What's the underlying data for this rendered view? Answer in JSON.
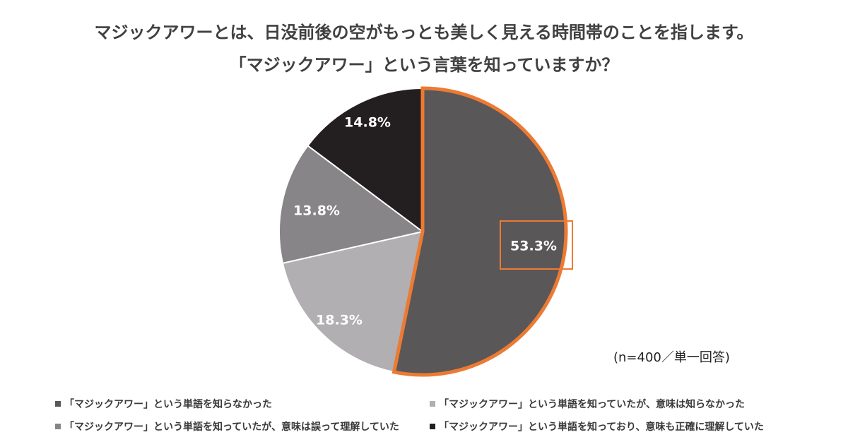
{
  "chart_data": {
    "type": "pie",
    "title": "マジックアワーとは、日没前後の空がもっとも美しく見える時間帯のことを指します。",
    "subtitle": "「マジックアワー」という言葉を知っていますか？",
    "slices": [
      {
        "name": "「マジックアワー」という単語を知らなかった",
        "value": 53.3,
        "label": "53.3%",
        "color": "#595758"
      },
      {
        "name": "「マジックアワー」という単語を知っていたが、意味は知らなかった",
        "value": 18.3,
        "label": "18.3%",
        "color": "#b1afb2"
      },
      {
        "name": "「マジックアワー」という単語を知っていたが、意味は誤って理解していた",
        "value": 13.8,
        "label": "13.8%",
        "color": "#878587"
      },
      {
        "name": "「マジックアワー」という単語を知っており、意味も正確に理解していた",
        "value": 14.8,
        "label": "14.8%",
        "color": "#231f20"
      }
    ],
    "highlight_color": "#ed7a33",
    "note": "(n=400／単一回答)",
    "legend_position": "bottom"
  }
}
